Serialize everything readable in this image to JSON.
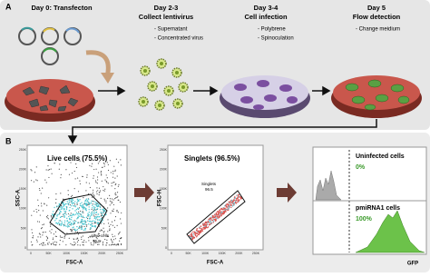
{
  "panel_a": {
    "label": "A",
    "steps": [
      {
        "title": "Day 0: Transfecton"
      },
      {
        "title": "Day 2-3",
        "subtitle": "Collect lentivirus",
        "items": [
          "- Supernatant",
          "- Concentrated virus"
        ]
      },
      {
        "title": "Day 3-4",
        "subtitle": "Cell infection",
        "items": [
          "- Polybrene",
          "- Spinoculation"
        ]
      },
      {
        "title": "Day 5",
        "subtitle": "Flow detection",
        "items": [
          "- Change meidium"
        ]
      }
    ]
  },
  "panel_b": {
    "label": "B",
    "live": {
      "title": "Live cells (75.5%)",
      "x_label": "FSC-A",
      "y_label": "SSC-A",
      "gate_label": "Alive cells",
      "gate_value": "75.5",
      "ticks": [
        "0",
        "50K",
        "100K",
        "150K",
        "200K",
        "250K"
      ]
    },
    "singlets": {
      "title": "Singlets (96.5%)",
      "x_label": "FSC-A",
      "y_label": "FSC-H",
      "gate_label": "Singlets",
      "gate_value": "96.5",
      "ticks": [
        "0",
        "50K",
        "100K",
        "150K",
        "200K",
        "250K"
      ]
    },
    "gfp": {
      "x_label": "GFP",
      "uninfected_label": "Uninfected cells",
      "uninfected_value": "0%",
      "infected_label": "pmiRNA1 cells",
      "infected_value": "100%"
    }
  }
}
